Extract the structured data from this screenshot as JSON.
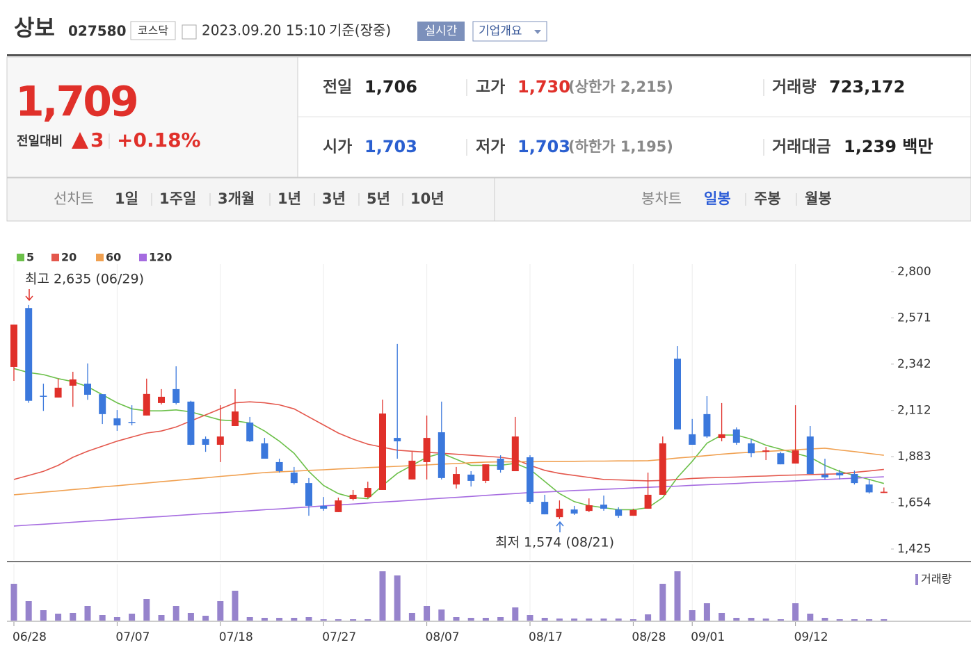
{
  "header": {
    "name": "상보",
    "code": "027580",
    "market": "코스닥",
    "datetime": "2023.09.20 15:10",
    "basis": "기준(장중)",
    "buttons": [
      "실시간",
      "기업개요"
    ]
  },
  "price": {
    "current": "1,709",
    "change_label": "전일대비",
    "change": "3",
    "change_pct": "+0.18%"
  },
  "stats": [
    {
      "label": "전일",
      "value": "1,706"
    },
    {
      "label": "고가",
      "value": "1,730",
      "note": "(상한가 2,215)"
    },
    {
      "label": "거래량",
      "value": "723,172"
    },
    {
      "label": "시가",
      "value": "1,703"
    },
    {
      "label": "저가",
      "value": "1,703",
      "note": "(하한가 1,195)"
    },
    {
      "label": "거래대금",
      "value": "1,239 백만"
    }
  ],
  "tabs": {
    "line_label": "선차트",
    "line_periods": [
      "1일",
      "1주일",
      "3개월",
      "1년",
      "3년",
      "5년",
      "10년"
    ],
    "candle_label": "봉차트",
    "candle_periods": [
      "일봉",
      "주봉",
      "월봉"
    ]
  },
  "chart_data": {
    "type": "candlestick",
    "categories": [
      "06/28",
      null,
      null,
      null,
      null,
      null,
      null,
      "07/07",
      null,
      null,
      null,
      null,
      null,
      null,
      "07/18",
      null,
      null,
      null,
      null,
      null,
      null,
      "07/27",
      null,
      null,
      null,
      null,
      null,
      null,
      "08/07",
      null,
      null,
      null,
      null,
      null,
      null,
      "08/17",
      null,
      null,
      null,
      null,
      null,
      null,
      "08/28",
      null,
      null,
      null,
      "09/01",
      null,
      null,
      null,
      null,
      null,
      null,
      "09/12",
      null,
      null,
      null,
      null,
      null,
      null
    ],
    "open": [
      2328,
      2620,
      2185,
      2176,
      2235,
      2245,
      2193,
      2073,
      2055,
      2087,
      2149,
      2218,
      2156,
      1970,
      1942,
      2035,
      2052,
      1949,
      1856,
      1804,
      1752,
      1639,
      1608,
      1673,
      1683,
      1718,
      1976,
      1770,
      1856,
      2004,
      1745,
      1794,
      1763,
      1873,
      1811,
      1880,
      1659,
      1583,
      1621,
      1614,
      1645,
      1621,
      1590,
      1625,
      1694,
      2369,
      1994,
      2094,
      1976,
      2018,
      1949,
      1907,
      1900,
      1849,
      1983,
      1794,
      1804,
      1797,
      1745,
      1703
    ],
    "high": [
      2538,
      2635,
      2245,
      2270,
      2304,
      2345,
      2193,
      2114,
      2138,
      2270,
      2218,
      2331,
      2160,
      1983,
      2138,
      2218,
      2080,
      1976,
      1873,
      1832,
      1777,
      1683,
      1680,
      1718,
      1759,
      2166,
      2442,
      1907,
      2087,
      2156,
      1832,
      1811,
      1845,
      1890,
      2080,
      1890,
      1694,
      1666,
      1639,
      1676,
      1690,
      1632,
      1625,
      1804,
      1983,
      2431,
      2070,
      2183,
      2149,
      2028,
      1969,
      1931,
      1907,
      2138,
      2035,
      1873,
      1818,
      1814,
      1770,
      1730
    ],
    "low": [
      2259,
      2150,
      2110,
      2176,
      2130,
      2165,
      2045,
      2011,
      2038,
      2087,
      2142,
      2142,
      1940,
      1907,
      1856,
      2035,
      1956,
      1873,
      1804,
      1745,
      1590,
      1615,
      1608,
      1666,
      1677,
      1718,
      1873,
      1770,
      1770,
      1770,
      1725,
      1735,
      1752,
      1804,
      1811,
      1649,
      1597,
      1574,
      1594,
      1608,
      1615,
      1580,
      1590,
      1625,
      1694,
      2018,
      1942,
      1976,
      1959,
      1942,
      1880,
      1866,
      1845,
      1849,
      1797,
      1770,
      1770,
      1745,
      1700,
      1703
    ],
    "close": [
      2538,
      2160,
      2180,
      2225,
      2266,
      2190,
      2094,
      2038,
      2050,
      2194,
      2180,
      2149,
      1942,
      1942,
      1983,
      2107,
      1959,
      1873,
      1811,
      1752,
      1639,
      1625,
      1666,
      1694,
      1728,
      2097,
      1959,
      1863,
      1976,
      1777,
      1797,
      1763,
      1845,
      1818,
      1983,
      1659,
      1597,
      1625,
      1601,
      1642,
      1625,
      1590,
      1618,
      1694,
      1949,
      2018,
      1942,
      1983,
      1994,
      1952,
      1900,
      1914,
      1845,
      1914,
      1797,
      1780,
      1790,
      1752,
      1706,
      1709
    ],
    "up_color": "#e0302a",
    "down_color": "#3b78dc",
    "series": [
      {
        "name": "5",
        "color": "#6cc04a",
        "values": [
          2320,
          2300,
          2290,
          2270,
          2255,
          2230,
          2190,
          2150,
          2120,
          2110,
          2110,
          2115,
          2105,
          2085,
          2065,
          2060,
          2050,
          2010,
          1960,
          1900,
          1810,
          1740,
          1700,
          1680,
          1675,
          1740,
          1800,
          1840,
          1880,
          1900,
          1870,
          1840,
          1840,
          1840,
          1850,
          1820,
          1760,
          1700,
          1660,
          1640,
          1630,
          1620,
          1620,
          1630,
          1680,
          1780,
          1860,
          1950,
          1990,
          1990,
          1970,
          1940,
          1920,
          1900,
          1880,
          1840,
          1810,
          1790,
          1770,
          1750
        ]
      },
      {
        "name": "20",
        "color": "#e4574c",
        "values": [
          1770,
          1790,
          1810,
          1840,
          1880,
          1910,
          1935,
          1960,
          1980,
          2000,
          2010,
          2030,
          2060,
          2090,
          2120,
          2150,
          2155,
          2150,
          2140,
          2120,
          2080,
          2040,
          2000,
          1970,
          1945,
          1930,
          1915,
          1910,
          1905,
          1900,
          1895,
          1890,
          1885,
          1880,
          1870,
          1840,
          1815,
          1800,
          1790,
          1780,
          1770,
          1768,
          1765,
          1763,
          1765,
          1770,
          1775,
          1778,
          1780,
          1782,
          1785,
          1787,
          1790,
          1792,
          1794,
          1796,
          1798,
          1805,
          1812,
          1820
        ]
      },
      {
        "name": "60",
        "color": "#f0a050",
        "values": [
          1694,
          1700,
          1707,
          1713,
          1720,
          1726,
          1733,
          1739,
          1746,
          1752,
          1759,
          1765,
          1772,
          1778,
          1785,
          1791,
          1798,
          1804,
          1808,
          1811,
          1815,
          1818,
          1822,
          1825,
          1829,
          1832,
          1835,
          1839,
          1842,
          1846,
          1849,
          1853,
          1856,
          1857,
          1857,
          1858,
          1859,
          1859,
          1860,
          1861,
          1861,
          1862,
          1862,
          1863,
          1869,
          1876,
          1882,
          1888,
          1895,
          1901,
          1905,
          1909,
          1913,
          1917,
          1921,
          1925,
          1916,
          1908,
          1899,
          1890
        ]
      },
      {
        "name": "120",
        "color": "#a56be0",
        "values": [
          1539,
          1544,
          1548,
          1553,
          1558,
          1563,
          1567,
          1572,
          1577,
          1582,
          1586,
          1591,
          1596,
          1601,
          1605,
          1610,
          1615,
          1620,
          1624,
          1629,
          1634,
          1639,
          1643,
          1648,
          1653,
          1658,
          1662,
          1667,
          1672,
          1677,
          1681,
          1686,
          1691,
          1696,
          1700,
          1705,
          1708,
          1711,
          1715,
          1718,
          1721,
          1724,
          1728,
          1731,
          1734,
          1737,
          1741,
          1744,
          1747,
          1750,
          1754,
          1757,
          1760,
          1763,
          1767,
          1770,
          1773,
          1776,
          1780,
          1783
        ]
      }
    ],
    "ylim": [
      1425,
      2800
    ],
    "yticks": [
      {
        "value": 2800,
        "label": "2,800"
      },
      {
        "value": 2571,
        "label": "2,571"
      },
      {
        "value": 2342,
        "label": "2,342"
      },
      {
        "value": 2112,
        "label": "2,112"
      },
      {
        "value": 1883,
        "label": "1,883"
      },
      {
        "value": 1654,
        "label": "1,654"
      },
      {
        "value": 1425,
        "label": "1,425"
      }
    ],
    "grid": "x",
    "annotations": {
      "high_label": "최고 2,635 (06/29)",
      "low_label": "최저 1,574 (08/21)"
    },
    "volume": {
      "name": "거래량",
      "color": "#9683cc",
      "ylim": [
        0,
        26000000
      ],
      "values": [
        18870000,
        9970000,
        5340000,
        3560000,
        3920000,
        7480000,
        2850000,
        1780000,
        3560000,
        11040000,
        2850000,
        7480000,
        3920000,
        2490000,
        9970000,
        15310000,
        1780000,
        1420000,
        1420000,
        1420000,
        1780000,
        710000,
        710000,
        710000,
        710000,
        25280000,
        23140000,
        3920000,
        7480000,
        5700000,
        1780000,
        1420000,
        1420000,
        1780000,
        6760000,
        2850000,
        1420000,
        1070000,
        1070000,
        1070000,
        1070000,
        1070000,
        710000,
        3200000,
        18870000,
        25280000,
        5340000,
        8900000,
        3920000,
        1420000,
        1420000,
        1070000,
        710000,
        8900000,
        3560000,
        1420000,
        710000,
        710000,
        710000,
        723172
      ]
    }
  }
}
